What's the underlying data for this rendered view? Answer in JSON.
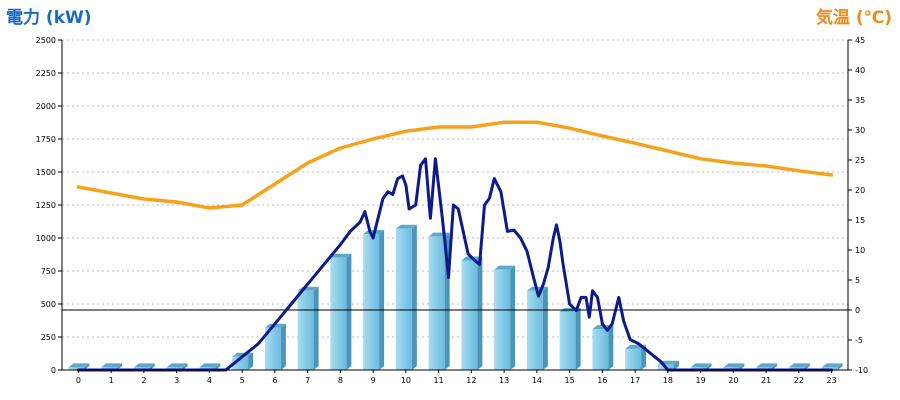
{
  "chart_data": {
    "type": "bar+line",
    "title_left": "電力 (kW)",
    "title_right": "気温 (℃)",
    "categories": [
      "0",
      "1",
      "2",
      "3",
      "4",
      "5",
      "6",
      "7",
      "8",
      "9",
      "10",
      "11",
      "12",
      "13",
      "14",
      "15",
      "16",
      "17",
      "18",
      "19",
      "20",
      "21",
      "22",
      "23"
    ],
    "y_left": {
      "ticks": [
        0,
        250,
        500,
        750,
        1000,
        1250,
        1500,
        1750,
        2000,
        2250,
        2500
      ],
      "range": [
        0,
        2500
      ]
    },
    "y_right": {
      "ticks": [
        -10,
        -5,
        0,
        5,
        10,
        15,
        20,
        25,
        30,
        35,
        40,
        45
      ],
      "range": [
        -10,
        45
      ]
    },
    "reference_line": {
      "axis": "right",
      "value": 0,
      "color": "#000000"
    },
    "series": [
      {
        "kind": "bar",
        "axis": "left",
        "color": "#87cce8",
        "values": [
          20,
          20,
          20,
          20,
          20,
          100,
          320,
          600,
          850,
          1030,
          1070,
          1010,
          830,
          760,
          600,
          440,
          310,
          160,
          40,
          20,
          20,
          20,
          20,
          20
        ]
      },
      {
        "kind": "line",
        "axis": "right",
        "color": "#f7a21b",
        "x": [
          0,
          1,
          2,
          3,
          4,
          5,
          6,
          7,
          8,
          9,
          10,
          11,
          12,
          13,
          14,
          15,
          16,
          17,
          18,
          19,
          20,
          21,
          22,
          23
        ],
        "values": [
          20.5,
          19.5,
          18.5,
          18,
          17,
          17.5,
          21,
          24.5,
          27,
          28.5,
          29.8,
          30.5,
          30.5,
          31.3,
          31.3,
          30.3,
          29,
          27.8,
          26.5,
          25.2,
          24.5,
          24,
          23.2,
          22.5
        ]
      },
      {
        "kind": "line",
        "axis": "left",
        "color": "#0d1a8a",
        "x": [
          0,
          1,
          2,
          3,
          4,
          4.5,
          5,
          5.5,
          6,
          6.5,
          7,
          7.5,
          8,
          8.3,
          8.6,
          8.75,
          8.9,
          9.0,
          9.1,
          9.3,
          9.45,
          9.6,
          9.75,
          9.9,
          10.0,
          10.1,
          10.3,
          10.45,
          10.6,
          10.75,
          10.9,
          11.1,
          11.2,
          11.3,
          11.45,
          11.6,
          11.75,
          11.9,
          12.1,
          12.25,
          12.4,
          12.55,
          12.7,
          12.9,
          13.1,
          13.3,
          13.5,
          13.7,
          13.9,
          14.05,
          14.2,
          14.35,
          14.5,
          14.6,
          14.7,
          14.8,
          15.0,
          15.2,
          15.35,
          15.5,
          15.6,
          15.7,
          15.85,
          16.0,
          16.15,
          16.3,
          16.5,
          16.65,
          16.85,
          17.1,
          17.35,
          17.6,
          17.8,
          18,
          19,
          20,
          21,
          22,
          23
        ],
        "values": [
          0,
          0,
          0,
          0,
          0,
          0,
          100,
          200,
          350,
          500,
          650,
          800,
          950,
          1050,
          1120,
          1200,
          1050,
          1000,
          1100,
          1300,
          1350,
          1330,
          1450,
          1470,
          1400,
          1220,
          1250,
          1550,
          1600,
          1150,
          1600,
          1180,
          950,
          700,
          1250,
          1220,
          1050,
          880,
          830,
          800,
          1250,
          1300,
          1450,
          1350,
          1050,
          1060,
          1000,
          900,
          700,
          560,
          650,
          780,
          1000,
          1100,
          980,
          800,
          500,
          450,
          550,
          550,
          400,
          600,
          550,
          350,
          300,
          350,
          550,
          370,
          230,
          200,
          150,
          100,
          60,
          0,
          0,
          0,
          0,
          0,
          0
        ]
      }
    ],
    "grid": {
      "horizontal": "dotted",
      "vertical": false
    }
  }
}
